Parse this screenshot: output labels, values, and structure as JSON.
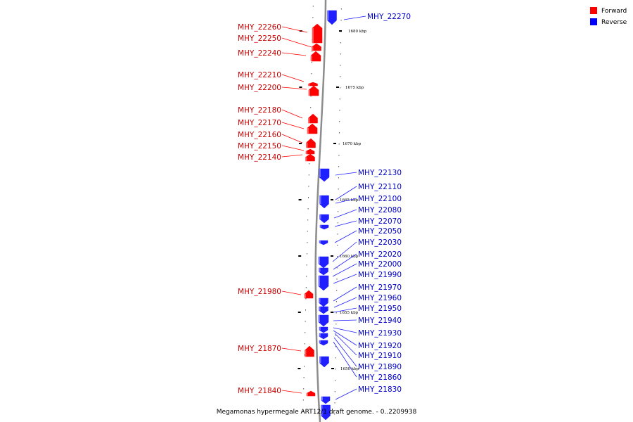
{
  "caption": "Megamonas hypermegale ART12/1 draft genome. - 0..2209938",
  "legend": [
    {
      "label": "Forward",
      "color": "#ff0000"
    },
    {
      "label": "Reverse",
      "color": "#0000ff"
    }
  ],
  "colors": {
    "forward": "#ff0000",
    "reverse": "#1f1fff",
    "backbone": "#8c8c8c"
  },
  "scale_labels": [
    "1680 kbp",
    "1675 kbp",
    "1670 kbp",
    "1665 kbp",
    "1660 kbp",
    "1655 kbp",
    "1650 kbp"
  ],
  "forward_genes": [
    "MHY_22260",
    "MHY_22250",
    "MHY_22240",
    "MHY_22210",
    "MHY_22200",
    "MHY_22180",
    "MHY_22170",
    "MHY_22160",
    "MHY_22150",
    "MHY_22140",
    "MHY_21980",
    "MHY_21870",
    "MHY_21840"
  ],
  "reverse_genes": [
    "MHY_22270",
    "MHY_22130",
    "MHY_22110",
    "MHY_22100",
    "MHY_22080",
    "MHY_22070",
    "MHY_22050",
    "MHY_22030",
    "MHY_22020",
    "MHY_22000",
    "MHY_21990",
    "MHY_21970",
    "MHY_21960",
    "MHY_21950",
    "MHY_21940",
    "MHY_21930",
    "MHY_21920",
    "MHY_21910",
    "MHY_21890",
    "MHY_21860",
    "MHY_21830"
  ]
}
